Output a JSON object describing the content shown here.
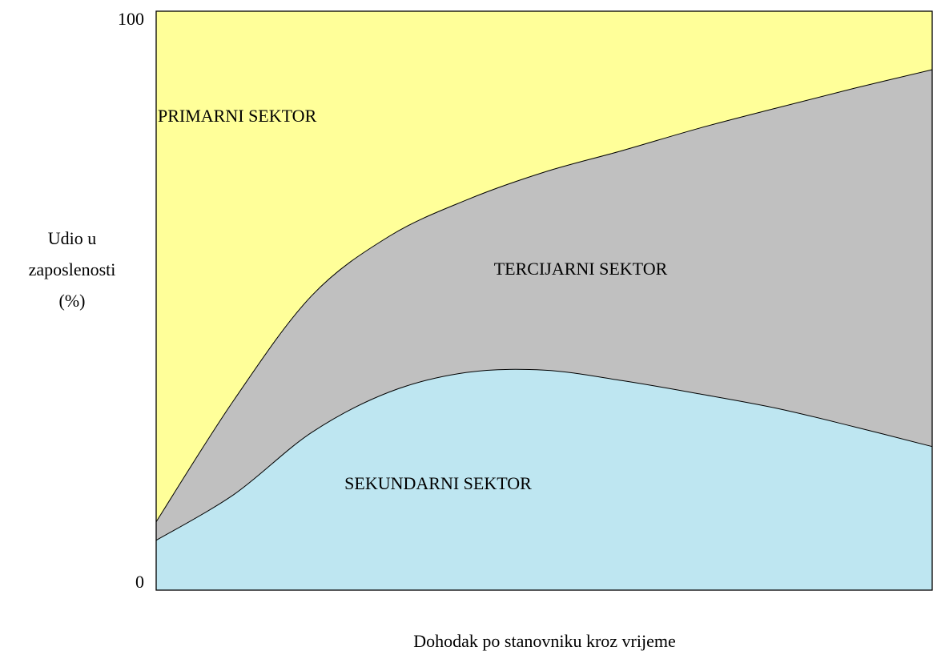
{
  "chart_data": {
    "type": "stacked-area",
    "xlabel": "Dohodak po stanovniku kroz vrijeme",
    "ylabel": [
      "Udio u",
      "zaposlenosti",
      "(%)"
    ],
    "categories": [
      null,
      null,
      null,
      null,
      null,
      null,
      null,
      null,
      null,
      null,
      null
    ],
    "series": [
      {
        "name": "SEKUNDARNI SEKTOR",
        "color": "#bee6f1",
        "values": [
          8.6,
          16.5,
          27.2,
          34.2,
          37.6,
          38.0,
          36.2,
          33.9,
          31.4,
          28.2,
          24.8
        ]
      },
      {
        "name": "TERCIJARNI SEKTOR",
        "color": "#c0c0c0",
        "values": [
          3.2,
          16.3,
          23.6,
          26.9,
          29.8,
          34.2,
          39.7,
          45.9,
          51.9,
          58.5,
          65.1
        ]
      },
      {
        "name": "PRIMARNI SEKTOR",
        "color": "#ffff99",
        "values": [
          88.2,
          67.2,
          49.2,
          38.9,
          32.6,
          27.8,
          24.1,
          20.2,
          16.7,
          13.3,
          10.1
        ]
      }
    ],
    "ylim": [
      0,
      100
    ],
    "yticks": [
      0,
      100
    ]
  }
}
